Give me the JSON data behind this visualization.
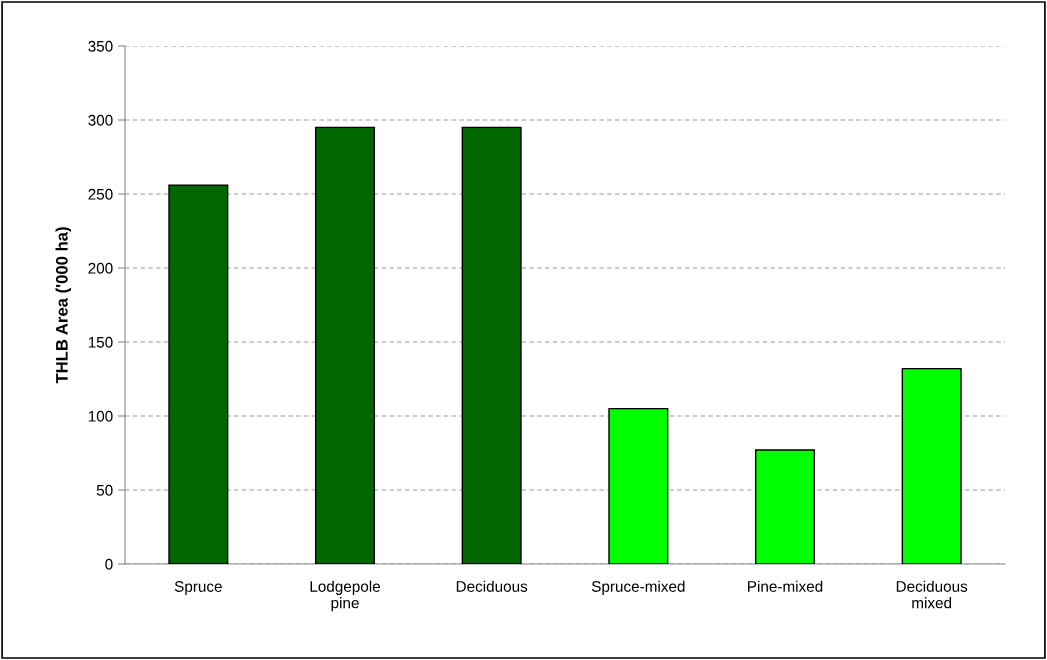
{
  "chart_data": {
    "type": "bar",
    "ylabel": "THLB Area ('000 ha)",
    "categories": [
      "Spruce",
      "Lodgepole\npine",
      "Deciduous",
      "Spruce-mixed",
      "Pine-mixed",
      "Deciduous\nmixed"
    ],
    "values": [
      256,
      295,
      295,
      105,
      77,
      132
    ],
    "colors": [
      "#006600",
      "#006600",
      "#006600",
      "#00ff00",
      "#00ff00",
      "#00ff00"
    ],
    "ylim": [
      0,
      350
    ],
    "yticks": [
      0,
      50,
      100,
      150,
      200,
      250,
      300,
      350
    ],
    "grid": "y"
  }
}
